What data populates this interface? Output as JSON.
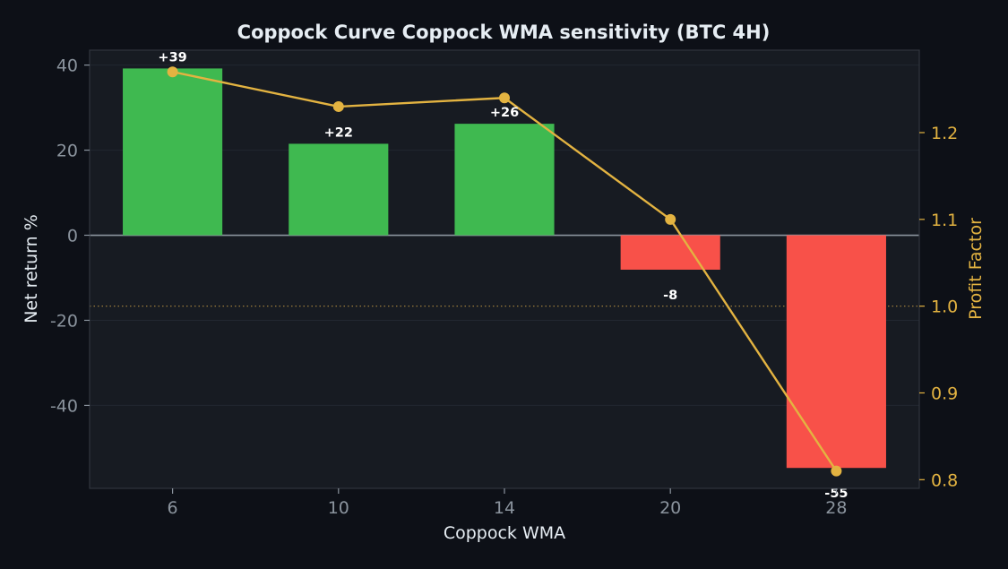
{
  "colors": {
    "page_bg": "#0d1017",
    "plot_bg": "#171b22",
    "axis_text": "#8b949e",
    "label_text": "#e6edf3",
    "positive": "#3fb950",
    "negative": "#f85149",
    "line": "#e3b341",
    "zero_line": "#8b949e",
    "ref_line": "#9a7b3c",
    "frame": "#30363d"
  },
  "chart_data": {
    "type": "bar",
    "title": "Coppock Curve Coppock WMA sensitivity (BTC 4H)",
    "xlabel": "Coppock WMA",
    "ylabel": "Net return %",
    "y2label": "Profit Factor",
    "categories": [
      "6",
      "10",
      "14",
      "20",
      "28"
    ],
    "series": [
      {
        "values": [
          39.2,
          21.5,
          26.2,
          -8.1,
          -54.7
        ],
        "labels": [
          "+39",
          "+22",
          "+26",
          "-8",
          "-55"
        ],
        "axis": "left",
        "kind": "bar"
      },
      {
        "values": [
          1.27,
          1.23,
          1.24,
          1.1,
          0.81
        ],
        "axis": "right",
        "kind": "line"
      }
    ],
    "ylim": [
      -59.5,
      43.5
    ],
    "yticks": [
      40,
      20,
      0,
      -20,
      -40
    ],
    "ytick_labels": [
      "40",
      "20",
      "0",
      "-20",
      "-40"
    ],
    "y2lim": [
      0.79,
      1.295
    ],
    "y2ticks": [
      1.2,
      1.1,
      1.0,
      0.9,
      0.8
    ],
    "y2tick_labels": [
      "1.2",
      "1.1",
      "1.0",
      "0.9",
      "0.8"
    ],
    "y2_reference": 1.0,
    "grid": true,
    "legend": "none"
  }
}
